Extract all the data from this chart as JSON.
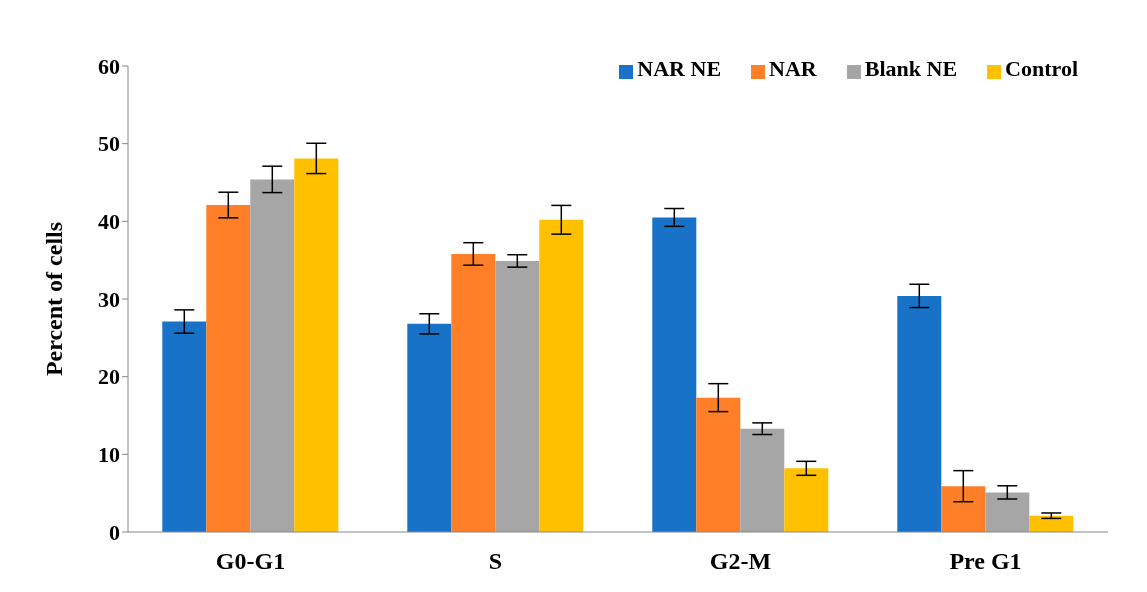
{
  "chart_data": {
    "type": "bar",
    "ylabel": "Percent of cells",
    "categories": [
      "G0-G1",
      "S",
      "G2-M",
      "Pre G1"
    ],
    "series": [
      {
        "name": "NAR NE",
        "color": "#1873c8",
        "values": [
          27.1,
          26.8,
          40.5,
          30.4
        ],
        "errors": [
          1.5,
          1.3,
          1.15,
          1.5
        ]
      },
      {
        "name": "NAR",
        "color": "#fe7f27",
        "values": [
          42.1,
          35.8,
          17.3,
          5.9
        ],
        "errors": [
          1.65,
          1.45,
          1.8,
          2.0
        ]
      },
      {
        "name": "Blank NE",
        "color": "#a6a6a6",
        "values": [
          45.4,
          34.9,
          13.3,
          5.1
        ],
        "errors": [
          1.7,
          0.8,
          0.75,
          0.85
        ]
      },
      {
        "name": "Control",
        "color": "#ffc000",
        "values": [
          48.1,
          40.2,
          8.2,
          2.1
        ],
        "errors": [
          1.95,
          1.85,
          0.9,
          0.35
        ]
      }
    ],
    "ylim": [
      0,
      60
    ],
    "yticks": [
      0,
      10,
      20,
      30,
      40,
      50,
      60
    ],
    "grid": false,
    "legend": "top right"
  }
}
